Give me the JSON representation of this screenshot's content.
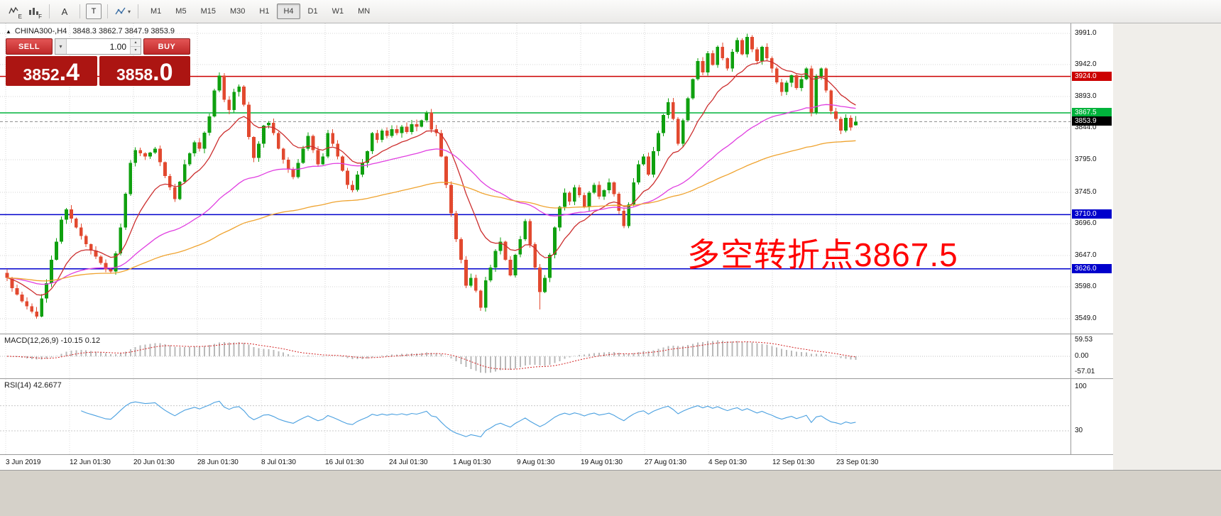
{
  "toolbar": {
    "expert_letter": "E",
    "f_letter": "F",
    "text_tool_label": "A",
    "label_tool_label": "T",
    "timeframes": [
      {
        "label": "M1"
      },
      {
        "label": "M5"
      },
      {
        "label": "M15"
      },
      {
        "label": "M30"
      },
      {
        "label": "H1"
      },
      {
        "label": "H4",
        "active": true
      },
      {
        "label": "D1"
      },
      {
        "label": "W1"
      },
      {
        "label": "MN"
      }
    ]
  },
  "chart": {
    "header": {
      "symbol": "CHINA300-,H4",
      "ohlc": "3848.3 3862.7 3847.9 3853.9"
    },
    "trade_panel": {
      "sell_label": "SELL",
      "buy_label": "BUY",
      "volume": "1.00",
      "sell_price_int": "3852",
      "sell_price_frac": ".4",
      "buy_price_int": "3858",
      "buy_price_frac": ".0"
    }
  },
  "chart_data": {
    "type": "candlestick",
    "symbol": "CHINA300-",
    "timeframe": "H4",
    "ohlc_header": {
      "open": 3848.3,
      "high": 3862.7,
      "low": 3847.9,
      "close": 3853.9
    },
    "y_axis_ticks": [
      "3991.0",
      "3942.0",
      "3893.0",
      "3844.0",
      "3795.0",
      "3745.0",
      "3696.0",
      "3647.0",
      "3598.0",
      "3549.0"
    ],
    "x_axis_labels": [
      "3 Jun 2019",
      "12 Jun 01:30",
      "20 Jun 01:30",
      "28 Jun 01:30",
      "8 Jul 01:30",
      "16 Jul 01:30",
      "24 Jul 01:30",
      "1 Aug 01:30",
      "9 Aug 01:30",
      "19 Aug 01:30",
      "27 Aug 01:30",
      "4 Sep 01:30",
      "12 Sep 01:30",
      "23 Sep 01:30"
    ],
    "price_levels": [
      {
        "price": 3924.0,
        "label": "3924.0",
        "color": "#cc0000"
      },
      {
        "price": 3867.5,
        "label": "3867.5",
        "color": "#00b33c"
      },
      {
        "price": 3853.9,
        "label": "3853.9",
        "color": "#000000",
        "current": true
      },
      {
        "price": 3710.0,
        "label": "3710.0",
        "color": "#0000cc"
      },
      {
        "price": 3626.0,
        "label": "3626.0",
        "color": "#0000cc"
      }
    ],
    "annotations": [
      {
        "text": "多空转折点3867.5",
        "color": "#ff0000"
      }
    ],
    "candles": {
      "count": 173,
      "up_color": "#0fa00f",
      "down_color": "#e2492f",
      "close_anchors": [
        [
          0,
          3612
        ],
        [
          1,
          3596
        ],
        [
          3,
          3576
        ],
        [
          5,
          3560
        ],
        [
          6,
          3552
        ],
        [
          7,
          3580
        ],
        [
          8,
          3604
        ],
        [
          9,
          3640
        ],
        [
          10,
          3668
        ],
        [
          11,
          3702
        ],
        [
          12,
          3718
        ],
        [
          14,
          3690
        ],
        [
          16,
          3664
        ],
        [
          18,
          3645
        ],
        [
          20,
          3625
        ],
        [
          21,
          3622
        ],
        [
          22,
          3650
        ],
        [
          23,
          3690
        ],
        [
          24,
          3742
        ],
        [
          25,
          3790
        ],
        [
          26,
          3810
        ],
        [
          28,
          3800
        ],
        [
          30,
          3812
        ],
        [
          32,
          3770
        ],
        [
          34,
          3734
        ],
        [
          36,
          3788
        ],
        [
          38,
          3822
        ],
        [
          39,
          3812
        ],
        [
          41,
          3862
        ],
        [
          42,
          3902
        ],
        [
          43,
          3925
        ],
        [
          44,
          3888
        ],
        [
          45,
          3872
        ],
        [
          46,
          3900
        ],
        [
          47,
          3908
        ],
        [
          48,
          3880
        ],
        [
          49,
          3830
        ],
        [
          50,
          3798
        ],
        [
          51,
          3820
        ],
        [
          52,
          3848
        ],
        [
          53,
          3852
        ],
        [
          54,
          3836
        ],
        [
          55,
          3812
        ],
        [
          56,
          3795
        ],
        [
          57,
          3780
        ],
        [
          58,
          3768
        ],
        [
          59,
          3790
        ],
        [
          60,
          3812
        ],
        [
          61,
          3832
        ],
        [
          62,
          3810
        ],
        [
          63,
          3788
        ],
        [
          64,
          3800
        ],
        [
          65,
          3836
        ],
        [
          66,
          3820
        ],
        [
          67,
          3800
        ],
        [
          68,
          3778
        ],
        [
          69,
          3756
        ],
        [
          70,
          3748
        ],
        [
          71,
          3772
        ],
        [
          72,
          3790
        ],
        [
          73,
          3808
        ],
        [
          74,
          3836
        ],
        [
          75,
          3826
        ],
        [
          76,
          3840
        ],
        [
          77,
          3832
        ],
        [
          78,
          3842
        ],
        [
          79,
          3836
        ],
        [
          80,
          3846
        ],
        [
          81,
          3838
        ],
        [
          82,
          3850
        ],
        [
          83,
          3846
        ],
        [
          84,
          3856
        ],
        [
          85,
          3868
        ],
        [
          86,
          3842
        ],
        [
          87,
          3836
        ],
        [
          88,
          3800
        ],
        [
          89,
          3756
        ],
        [
          90,
          3712
        ],
        [
          91,
          3672
        ],
        [
          92,
          3640
        ],
        [
          93,
          3600
        ],
        [
          94,
          3612
        ],
        [
          95,
          3592
        ],
        [
          96,
          3566
        ],
        [
          97,
          3608
        ],
        [
          98,
          3628
        ],
        [
          99,
          3654
        ],
        [
          100,
          3668
        ],
        [
          101,
          3640
        ],
        [
          102,
          3616
        ],
        [
          103,
          3648
        ],
        [
          104,
          3672
        ],
        [
          105,
          3700
        ],
        [
          106,
          3664
        ],
        [
          107,
          3628
        ],
        [
          108,
          3590
        ],
        [
          109,
          3612
        ],
        [
          110,
          3648
        ],
        [
          111,
          3690
        ],
        [
          112,
          3722
        ],
        [
          113,
          3744
        ],
        [
          114,
          3730
        ],
        [
          115,
          3752
        ],
        [
          116,
          3740
        ],
        [
          117,
          3722
        ],
        [
          118,
          3744
        ],
        [
          119,
          3756
        ],
        [
          120,
          3738
        ],
        [
          121,
          3748
        ],
        [
          122,
          3760
        ],
        [
          123,
          3742
        ],
        [
          124,
          3716
        ],
        [
          125,
          3692
        ],
        [
          126,
          3726
        ],
        [
          127,
          3760
        ],
        [
          128,
          3788
        ],
        [
          129,
          3800
        ],
        [
          130,
          3772
        ],
        [
          131,
          3808
        ],
        [
          132,
          3836
        ],
        [
          133,
          3864
        ],
        [
          134,
          3884
        ],
        [
          135,
          3858
        ],
        [
          136,
          3820
        ],
        [
          137,
          3856
        ],
        [
          138,
          3890
        ],
        [
          139,
          3920
        ],
        [
          140,
          3948
        ],
        [
          141,
          3930
        ],
        [
          142,
          3960
        ],
        [
          143,
          3942
        ],
        [
          144,
          3970
        ],
        [
          145,
          3952
        ],
        [
          146,
          3936
        ],
        [
          147,
          3962
        ],
        [
          148,
          3980
        ],
        [
          149,
          3958
        ],
        [
          150,
          3985
        ],
        [
          151,
          3966
        ],
        [
          152,
          3948
        ],
        [
          153,
          3970
        ],
        [
          154,
          3952
        ],
        [
          155,
          3936
        ],
        [
          156,
          3915
        ],
        [
          157,
          3900
        ],
        [
          158,
          3914
        ],
        [
          159,
          3926
        ],
        [
          160,
          3906
        ],
        [
          161,
          3920
        ],
        [
          162,
          3936
        ],
        [
          163,
          3868
        ],
        [
          164,
          3924
        ],
        [
          165,
          3936
        ],
        [
          166,
          3902
        ],
        [
          167,
          3870
        ],
        [
          168,
          3858
        ],
        [
          169,
          3840
        ],
        [
          170,
          3860
        ],
        [
          171,
          3845
        ],
        [
          172,
          3853.9
        ]
      ],
      "wick_overrides": {
        "low": {
          "6": 3549,
          "96": 3561,
          "108": 3563
        },
        "high": {
          "43": 3930,
          "85": 3871,
          "150": 3990
        }
      },
      "final_candle": {
        "open": 3848.3,
        "high": 3862.7,
        "low": 3847.9,
        "close": 3853.9
      }
    },
    "moving_averages": [
      {
        "name": "fast",
        "period": 13,
        "color": "#cc2e2e"
      },
      {
        "name": "medium",
        "period": 48,
        "color": "#e03ee0"
      },
      {
        "name": "slow",
        "period": 110,
        "color": "#efa32f"
      }
    ],
    "indicators": [
      {
        "name": "MACD",
        "label": "MACD(12,26,9) -10.15 0.12",
        "fast": 12,
        "slow": 26,
        "signal": 9,
        "value": -10.15,
        "signal_value": 0.12,
        "axis_ticks": [
          "59.53",
          "0.00",
          "-57.01"
        ],
        "histogram_color": "#b9b9b9",
        "signal_color": "#d22222"
      },
      {
        "name": "RSI",
        "label": "RSI(14) 42.6677",
        "period": 14,
        "value": 42.6677,
        "axis_ticks": [
          "100",
          "30"
        ],
        "levels": [
          70,
          30
        ],
        "line_color": "#4aa0e0"
      }
    ]
  }
}
